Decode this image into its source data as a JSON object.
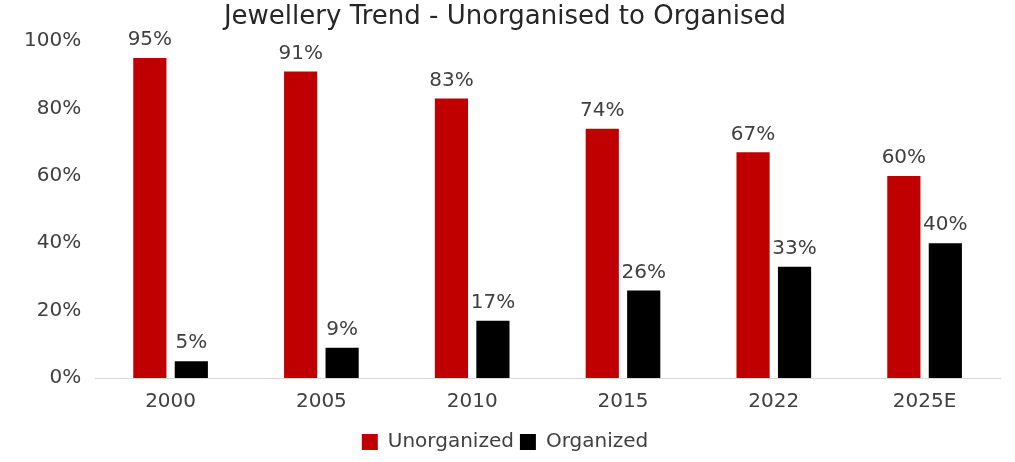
{
  "chart_data": {
    "type": "bar",
    "title": "Jewellery Trend - Unorganised to Organised",
    "categories": [
      "2000",
      "2005",
      "2010",
      "2015",
      "2022",
      "2025E"
    ],
    "series": [
      {
        "name": "Unorganized",
        "color": "#c00000",
        "values": [
          95,
          91,
          83,
          74,
          67,
          60
        ],
        "value_labels": [
          "95%",
          "91%",
          "83%",
          "74%",
          "67%",
          "60%"
        ]
      },
      {
        "name": "Organized",
        "color": "#000000",
        "values": [
          5,
          9,
          17,
          26,
          33,
          40
        ],
        "value_labels": [
          "5%",
          "9%",
          "17%",
          "26%",
          "33%",
          "40%"
        ]
      }
    ],
    "ylim": [
      0,
      100
    ],
    "yticks": [
      {
        "value": 0,
        "label": "0%"
      },
      {
        "value": 20,
        "label": "20%"
      },
      {
        "value": 40,
        "label": "40%"
      },
      {
        "value": 60,
        "label": "60%"
      },
      {
        "value": 80,
        "label": "80%"
      },
      {
        "value": 100,
        "label": "100%"
      }
    ],
    "grid": false,
    "legend": "bottom"
  }
}
